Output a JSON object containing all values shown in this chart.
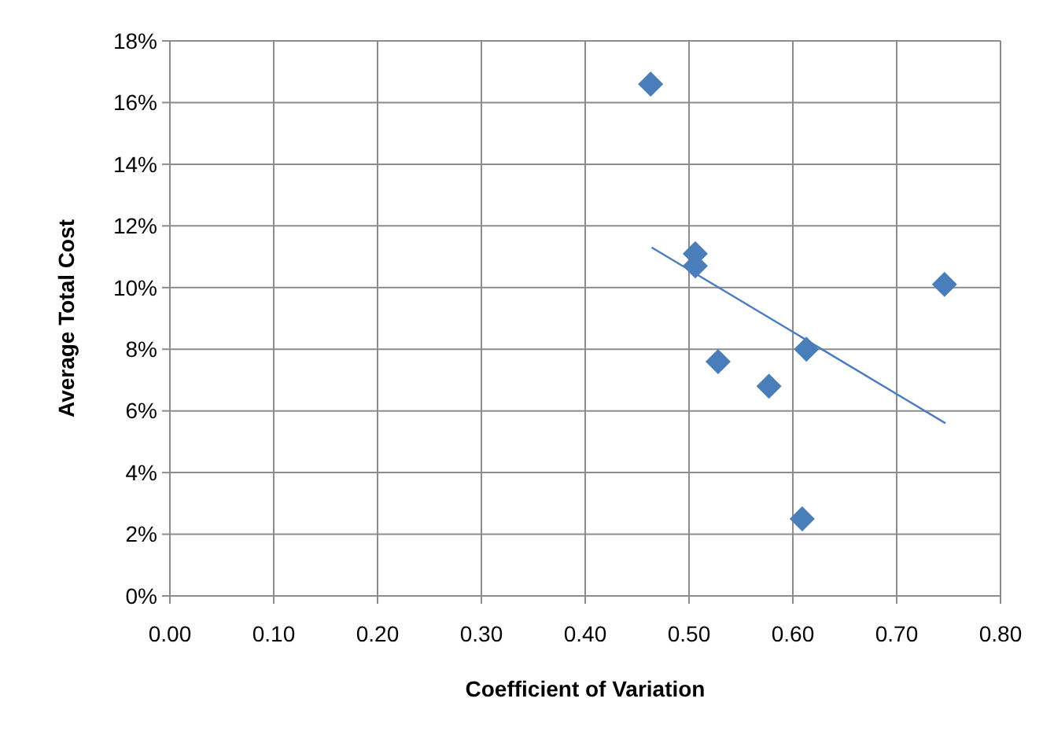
{
  "chart_data": {
    "type": "scatter",
    "xlabel": "Coefficient of Variation",
    "ylabel": "Average Total Cost",
    "xlim": [
      0,
      0.8
    ],
    "xticks": [
      {
        "value": 0,
        "label": "0.00"
      },
      {
        "value": 0.1,
        "label": "0.10"
      },
      {
        "value": 0.2,
        "label": "0.20"
      },
      {
        "value": 0.3,
        "label": "0.30"
      },
      {
        "value": 0.4,
        "label": "0.40"
      },
      {
        "value": 0.5,
        "label": "0.50"
      },
      {
        "value": 0.6,
        "label": "0.60"
      },
      {
        "value": 0.7,
        "label": "0.70"
      },
      {
        "value": 0.8,
        "label": "0.80"
      }
    ],
    "ylim": [
      0,
      18
    ],
    "yticks": [
      {
        "value": 0,
        "label": "0%"
      },
      {
        "value": 2,
        "label": "2%"
      },
      {
        "value": 4,
        "label": "4%"
      },
      {
        "value": 6,
        "label": "6%"
      },
      {
        "value": 8,
        "label": "8%"
      },
      {
        "value": 10,
        "label": "10%"
      },
      {
        "value": 12,
        "label": "12%"
      },
      {
        "value": 14,
        "label": "14%"
      },
      {
        "value": 16,
        "label": "16%"
      },
      {
        "value": 18,
        "label": "18%"
      }
    ],
    "grid": true,
    "series": [
      {
        "marker": "diamond",
        "color": "#4a7ebb",
        "x": [
          0.463,
          0.506,
          0.506,
          0.746,
          0.528,
          0.577,
          0.613,
          0.609
        ],
        "values": [
          16.6,
          11.1,
          10.7,
          10.1,
          7.6,
          6.8,
          8.0,
          2.5
        ]
      },
      {
        "type": "line",
        "marker": "none",
        "line_style": "solid",
        "color": "#4a7ebb",
        "x": [
          0.464,
          0.747
        ],
        "values": [
          11.3,
          5.6
        ]
      }
    ]
  }
}
